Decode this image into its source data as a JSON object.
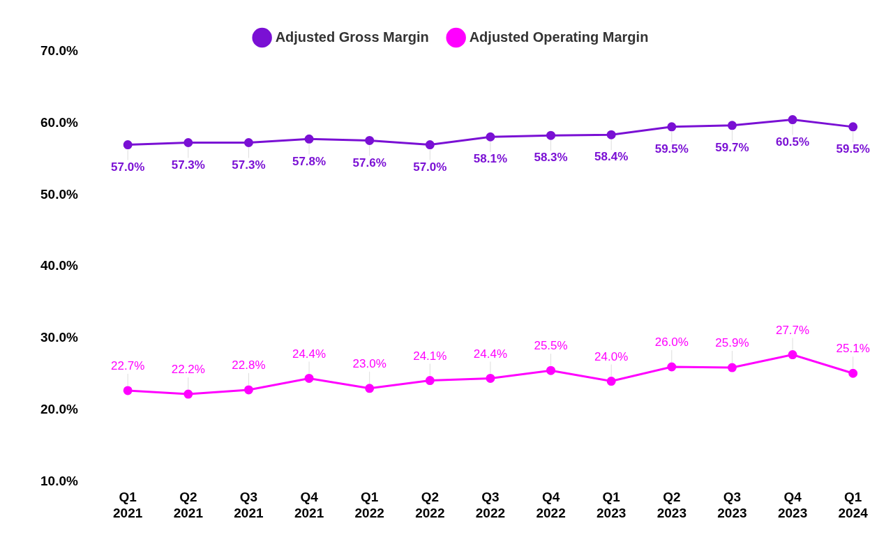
{
  "chart_data": {
    "type": "line",
    "categories": [
      "Q1 2021",
      "Q2 2021",
      "Q3 2021",
      "Q4 2021",
      "Q1 2022",
      "Q2 2022",
      "Q3 2022",
      "Q4 2022",
      "Q1 2023",
      "Q2 2023",
      "Q3 2023",
      "Q4 2023",
      "Q1 2024"
    ],
    "series": [
      {
        "name": "Adjusted Gross Margin",
        "color": "#7a10d4",
        "marker": "circle",
        "values": [
          57.0,
          57.3,
          57.3,
          57.8,
          57.6,
          57.0,
          58.1,
          58.3,
          58.4,
          59.5,
          59.7,
          60.5,
          59.5
        ],
        "value_labels": [
          "57.0%",
          "57.3%",
          "57.3%",
          "57.8%",
          "57.6%",
          "57.0%",
          "58.1%",
          "58.3%",
          "58.4%",
          "59.5%",
          "59.7%",
          "60.5%",
          "59.5%"
        ]
      },
      {
        "name": "Adjusted Operating Margin",
        "color": "#ff00ff",
        "marker": "circle",
        "values": [
          22.7,
          22.2,
          22.8,
          24.4,
          23.0,
          24.1,
          24.4,
          25.5,
          24.0,
          26.0,
          25.9,
          27.7,
          25.1
        ],
        "value_labels": [
          "22.7%",
          "22.2%",
          "22.8%",
          "24.4%",
          "23.0%",
          "24.1%",
          "24.4%",
          "25.5%",
          "24.0%",
          "26.0%",
          "25.9%",
          "27.7%",
          "25.1%"
        ]
      }
    ],
    "ylim": [
      10,
      70
    ],
    "yticks": [
      {
        "value": 10,
        "label": "10.0%"
      },
      {
        "value": 20,
        "label": "20.0%"
      },
      {
        "value": 30,
        "label": "30.0%"
      },
      {
        "value": 40,
        "label": "40.0%"
      },
      {
        "value": 50,
        "label": "50.0%"
      },
      {
        "value": 60,
        "label": "60.0%"
      },
      {
        "value": 70,
        "label": "70.0%"
      }
    ],
    "grid": false,
    "legend": "top",
    "data_labels": true
  }
}
